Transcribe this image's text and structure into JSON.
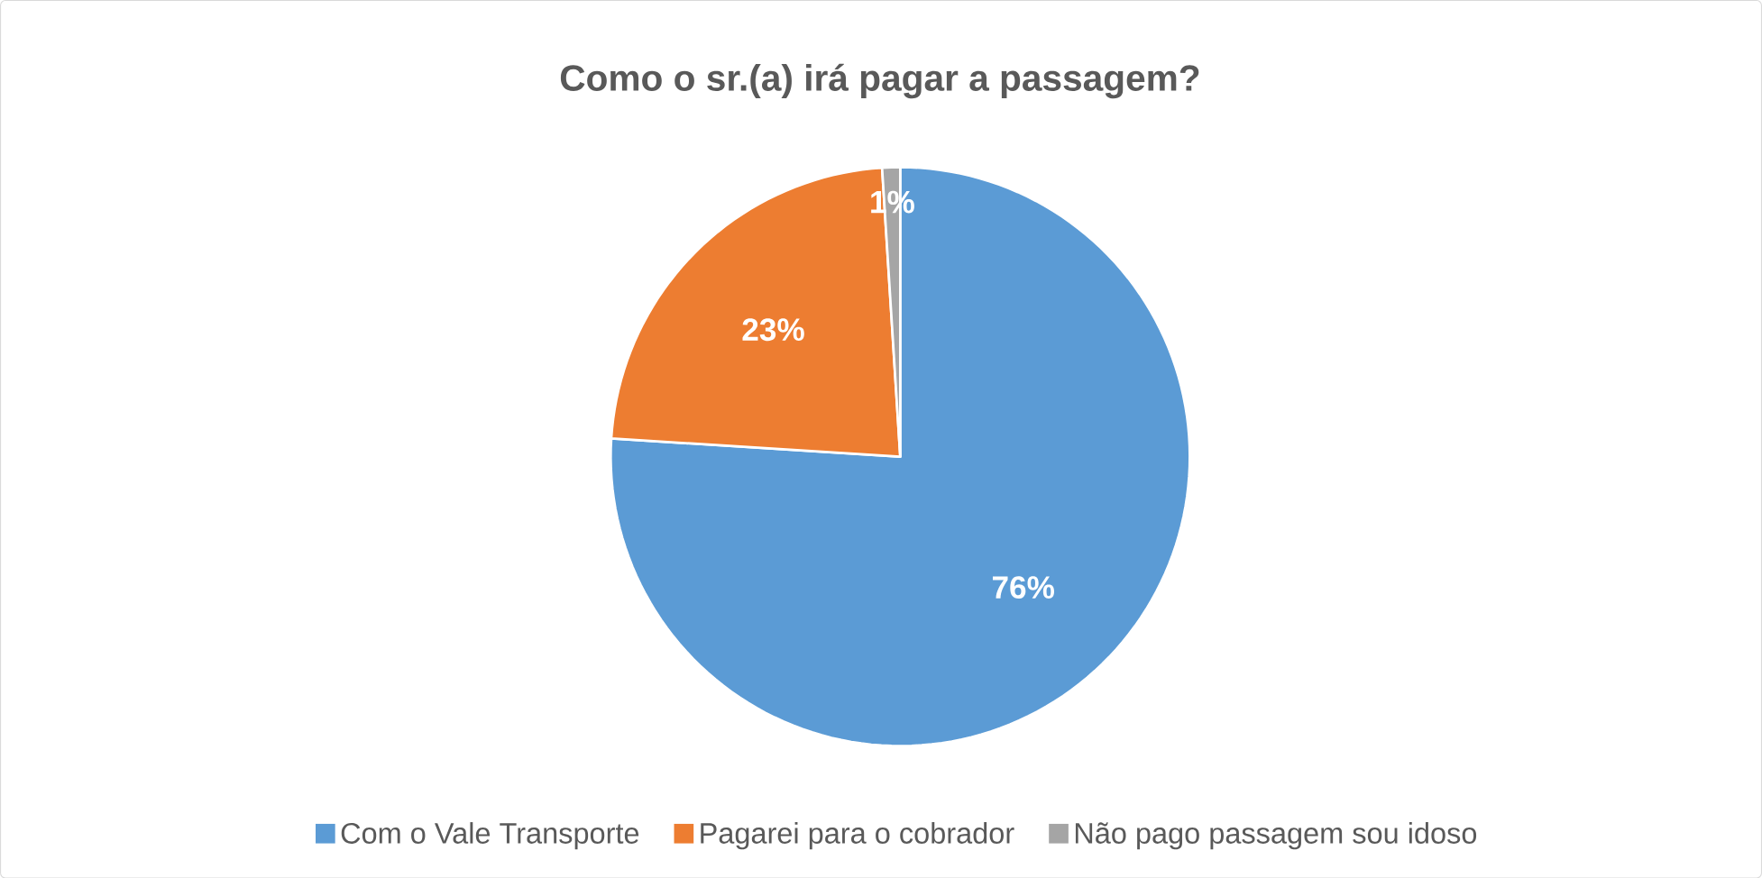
{
  "chart_data": {
    "type": "pie",
    "title": "Como o sr.(a) irá pagar a passagem?",
    "categories": [
      "Com o Vale Transporte",
      "Pagarei para o cobrador",
      "Não pago passagem sou idoso"
    ],
    "values": [
      76,
      23,
      1
    ],
    "colors": [
      "#5b9bd5",
      "#ed7d31",
      "#a5a5a5"
    ],
    "value_labels": [
      "76%",
      "23%",
      "1%"
    ],
    "legend": "bottom"
  }
}
